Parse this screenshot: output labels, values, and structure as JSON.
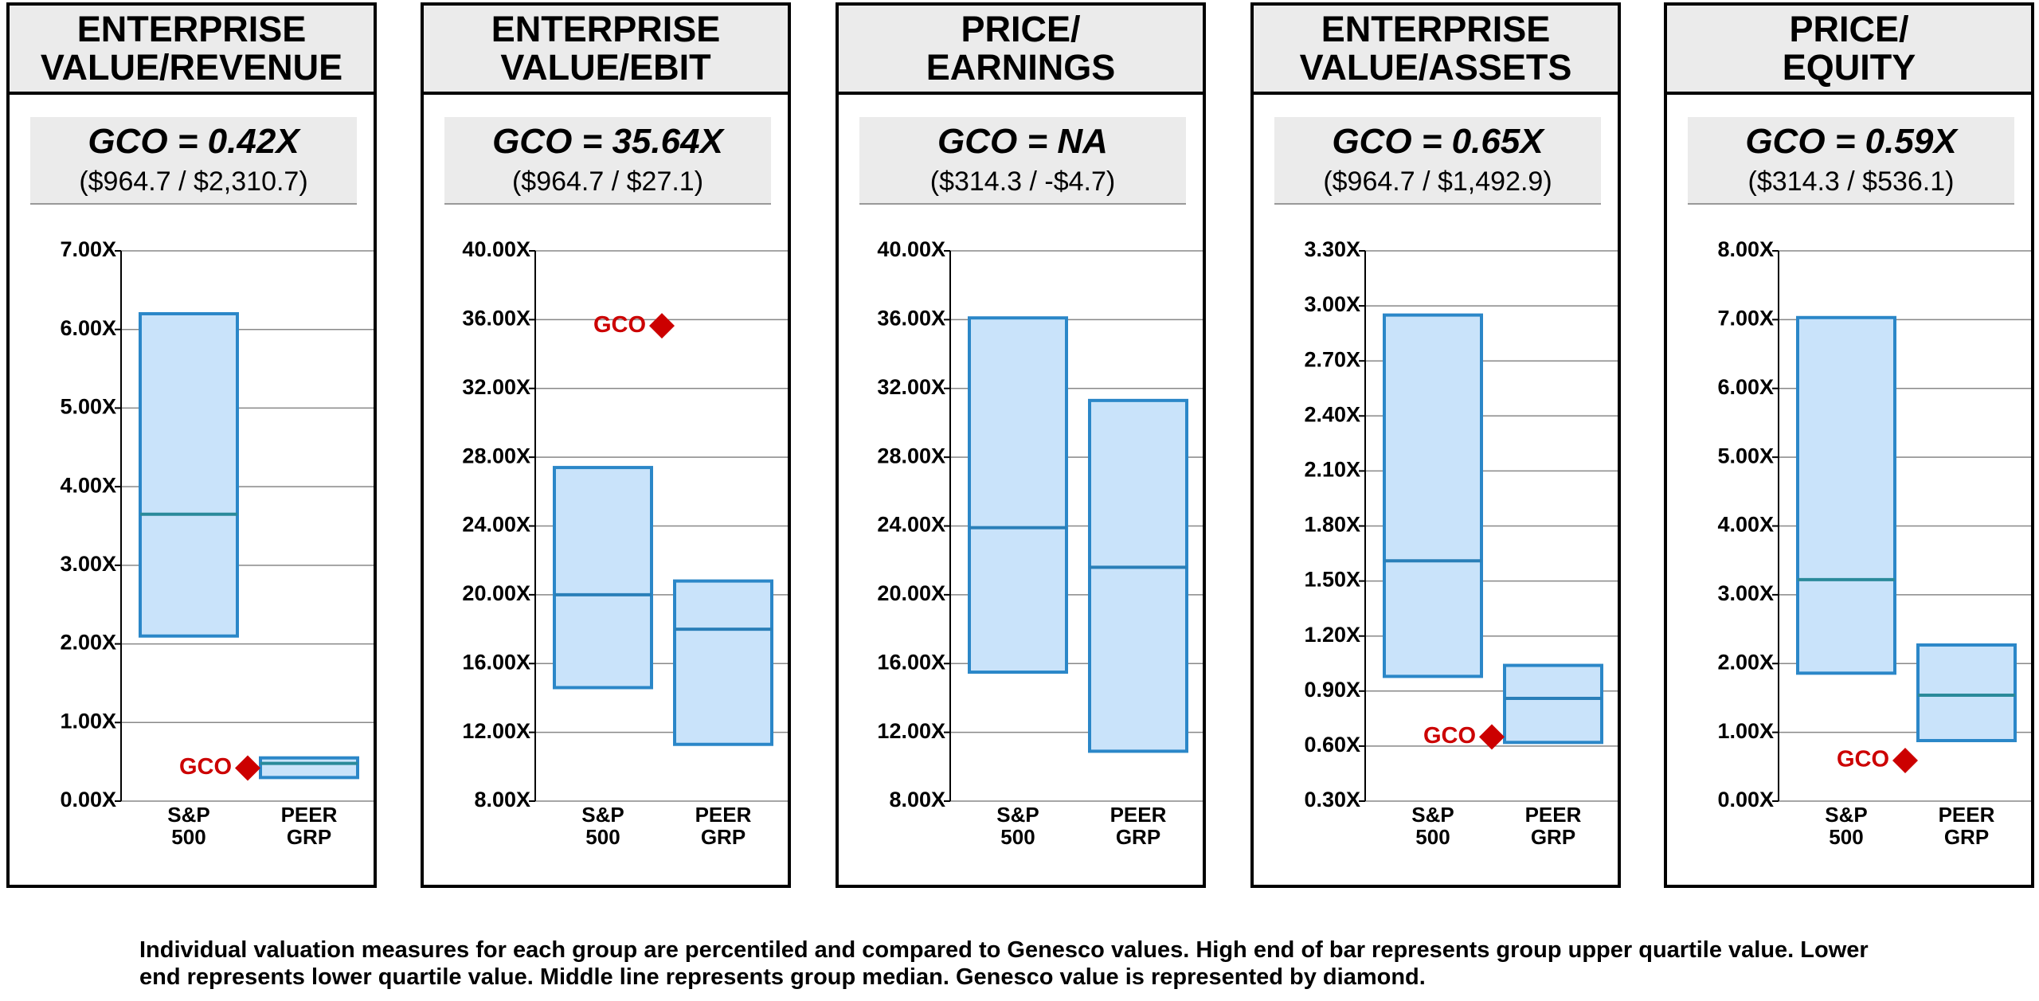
{
  "chart_data": [
    {
      "type": "box",
      "title": [
        "ENTERPRISE",
        "VALUE/REVENUE"
      ],
      "headline": "GCO = 0.42X",
      "ratio": "($964.7 / $2,310.7)",
      "categories": [
        "S&P 500",
        "PEER GRP"
      ],
      "boxes": [
        {
          "q1": 2.1,
          "median": 3.65,
          "q3": 6.2
        },
        {
          "q1": 0.3,
          "median": 0.48,
          "q3": 0.55
        }
      ],
      "gco_label": "GCO",
      "gco": 0.42,
      "ylim": [
        0,
        7
      ],
      "yticks": [
        {
          "value": 0,
          "label": "0.00X"
        },
        {
          "value": 1,
          "label": "1.00X"
        },
        {
          "value": 2,
          "label": "2.00X"
        },
        {
          "value": 3,
          "label": "3.00X"
        },
        {
          "value": 4,
          "label": "4.00X"
        },
        {
          "value": 5,
          "label": "5.00X"
        },
        {
          "value": 6,
          "label": "6.00X"
        },
        {
          "value": 7,
          "label": "7.00X"
        }
      ],
      "color": "#c9e3fa",
      "edge_color": "#2b87c8",
      "median_color": "#2a8a9a",
      "gco_color": "#cc0000",
      "grid": true
    },
    {
      "type": "box",
      "title": [
        "ENTERPRISE",
        "VALUE/EBIT"
      ],
      "headline": "GCO = 35.64X",
      "ratio": "($964.7 / $27.1)",
      "categories": [
        "S&P 500",
        "PEER GRP"
      ],
      "boxes": [
        {
          "q1": 14.6,
          "median": 20.0,
          "q3": 27.4
        },
        {
          "q1": 11.3,
          "median": 18.0,
          "q3": 20.8
        }
      ],
      "gco_label": "GCO",
      "gco": 35.64,
      "ylim": [
        8,
        40
      ],
      "yticks": [
        {
          "value": 8,
          "label": "8.00X"
        },
        {
          "value": 12,
          "label": "12.00X"
        },
        {
          "value": 16,
          "label": "16.00X"
        },
        {
          "value": 20,
          "label": "20.00X"
        },
        {
          "value": 24,
          "label": "24.00X"
        },
        {
          "value": 28,
          "label": "28.00X"
        },
        {
          "value": 32,
          "label": "32.00X"
        },
        {
          "value": 36,
          "label": "36.00X"
        },
        {
          "value": 40,
          "label": "40.00X"
        }
      ],
      "color": "#c9e3fa",
      "edge_color": "#2b87c8",
      "median_color": "#2a7fb8",
      "gco_color": "#cc0000",
      "grid": true
    },
    {
      "type": "box",
      "title": [
        "PRICE/",
        "EARNINGS"
      ],
      "headline": "GCO = NA",
      "ratio": "($314.3 / -$4.7)",
      "categories": [
        "S&P 500",
        "PEER GRP"
      ],
      "boxes": [
        {
          "q1": 15.5,
          "median": 23.9,
          "q3": 36.1
        },
        {
          "q1": 10.9,
          "median": 21.6,
          "q3": 31.3
        }
      ],
      "gco": null,
      "ylim": [
        8,
        40
      ],
      "yticks": [
        {
          "value": 8,
          "label": "8.00X"
        },
        {
          "value": 12,
          "label": "12.00X"
        },
        {
          "value": 16,
          "label": "16.00X"
        },
        {
          "value": 20,
          "label": "20.00X"
        },
        {
          "value": 24,
          "label": "24.00X"
        },
        {
          "value": 28,
          "label": "28.00X"
        },
        {
          "value": 32,
          "label": "32.00X"
        },
        {
          "value": 36,
          "label": "36.00X"
        },
        {
          "value": 40,
          "label": "40.00X"
        }
      ],
      "color": "#c9e3fa",
      "edge_color": "#2b87c8",
      "median_color": "#2a7fb8",
      "gco_color": "#cc0000",
      "grid": true
    },
    {
      "type": "box",
      "title": [
        "ENTERPRISE",
        "VALUE/ASSETS"
      ],
      "headline": "GCO = 0.65X",
      "ratio": "($964.7 / $1,492.9)",
      "categories": [
        "S&P 500",
        "PEER GRP"
      ],
      "boxes": [
        {
          "q1": 0.98,
          "median": 1.61,
          "q3": 2.95
        },
        {
          "q1": 0.62,
          "median": 0.86,
          "q3": 1.04
        }
      ],
      "gco_label": "GCO",
      "gco": 0.65,
      "ylim": [
        0.3,
        3.3
      ],
      "yticks": [
        {
          "value": 0.3,
          "label": "0.30X"
        },
        {
          "value": 0.6,
          "label": "0.60X"
        },
        {
          "value": 0.9,
          "label": "0.90X"
        },
        {
          "value": 1.2,
          "label": "1.20X"
        },
        {
          "value": 1.5,
          "label": "1.50X"
        },
        {
          "value": 1.8,
          "label": "1.80X"
        },
        {
          "value": 2.1,
          "label": "2.10X"
        },
        {
          "value": 2.4,
          "label": "2.40X"
        },
        {
          "value": 2.7,
          "label": "2.70X"
        },
        {
          "value": 3.0,
          "label": "3.00X"
        },
        {
          "value": 3.3,
          "label": "3.30X"
        }
      ],
      "color": "#c9e3fa",
      "edge_color": "#2b87c8",
      "median_color": "#2a7fb8",
      "gco_color": "#cc0000",
      "grid": true
    },
    {
      "type": "box",
      "title": [
        "PRICE/",
        "EQUITY"
      ],
      "headline": "GCO = 0.59X",
      "ratio": "($314.3 / $536.1)",
      "categories": [
        "S&P 500",
        "PEER GRP"
      ],
      "boxes": [
        {
          "q1": 1.86,
          "median": 3.22,
          "q3": 7.03
        },
        {
          "q1": 0.88,
          "median": 1.54,
          "q3": 2.27
        }
      ],
      "gco_label": "GCO",
      "gco": 0.59,
      "ylim": [
        0,
        8
      ],
      "yticks": [
        {
          "value": 0,
          "label": "0.00X"
        },
        {
          "value": 1,
          "label": "1.00X"
        },
        {
          "value": 2,
          "label": "2.00X"
        },
        {
          "value": 3,
          "label": "3.00X"
        },
        {
          "value": 4,
          "label": "4.00X"
        },
        {
          "value": 5,
          "label": "5.00X"
        },
        {
          "value": 6,
          "label": "6.00X"
        },
        {
          "value": 7,
          "label": "7.00X"
        },
        {
          "value": 8,
          "label": "8.00X"
        }
      ],
      "color": "#c9e3fa",
      "edge_color": "#2b87c8",
      "median_color": "#2a8a9a",
      "gco_color": "#cc0000",
      "grid": true
    }
  ],
  "footnote": "Individual valuation measures for each group are percentiled and compared to Genesco values. High end of bar represents group upper quartile value. Lower end represents lower quartile value. Middle line represents group median. Genesco value is represented by diamond."
}
